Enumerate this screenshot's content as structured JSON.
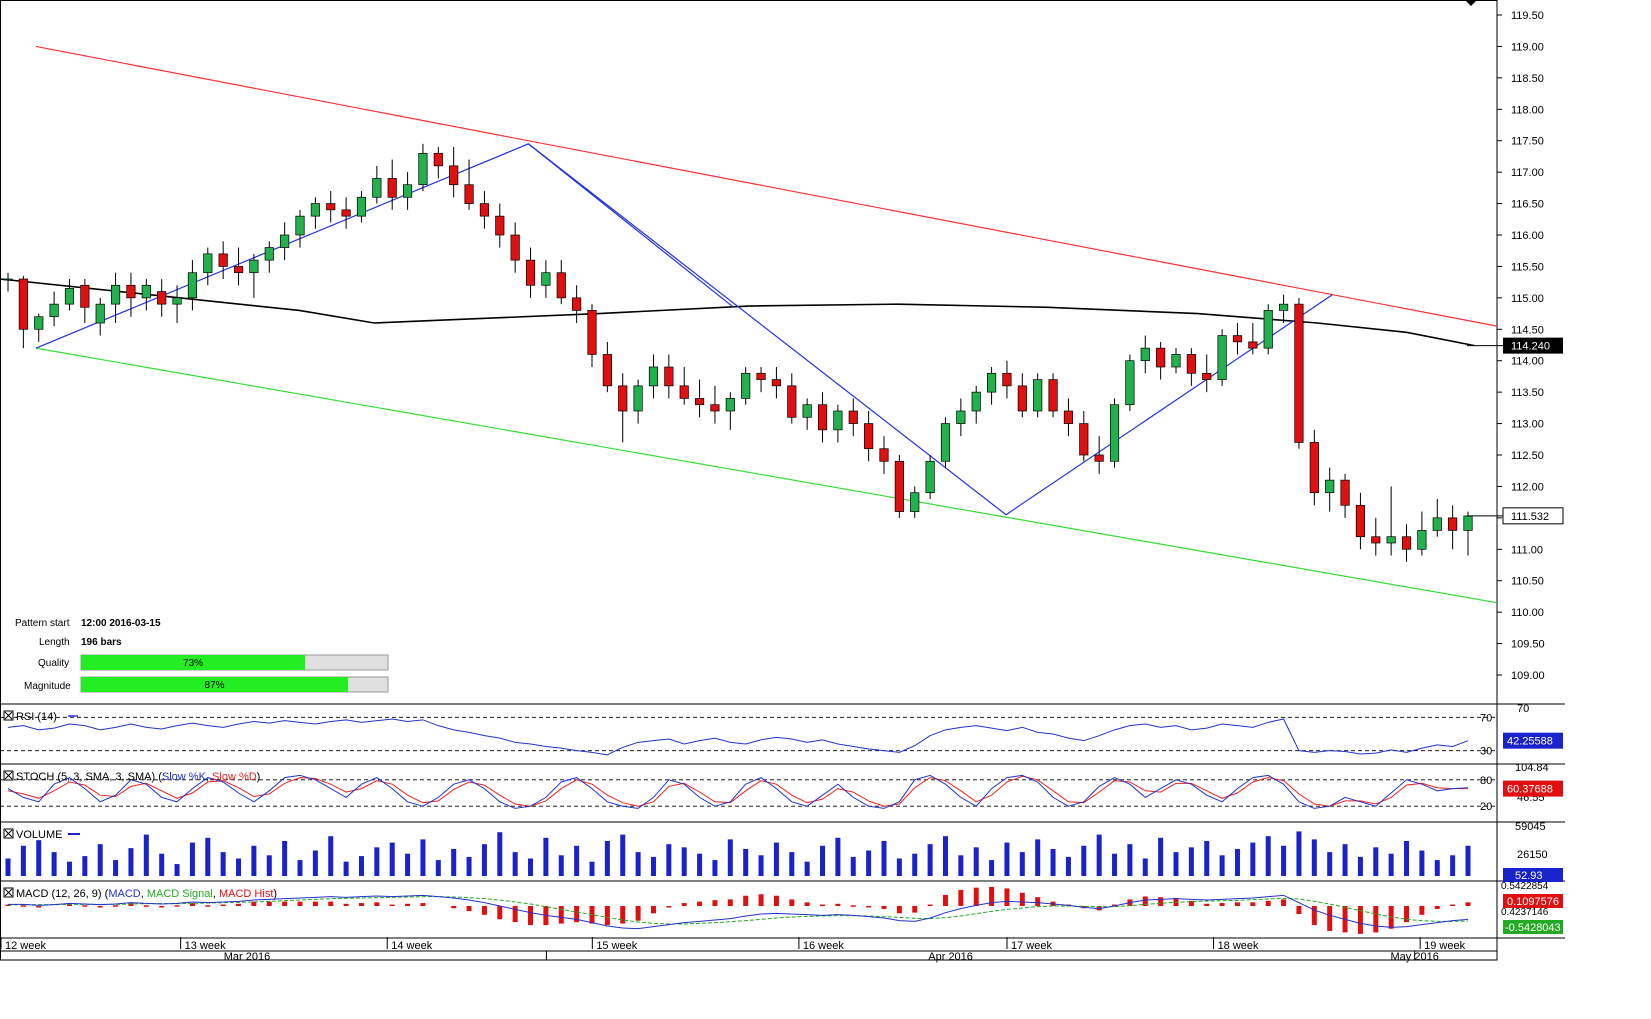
{
  "chart_data": {
    "type": "candlestick",
    "price_axis": {
      "min": 109.0,
      "max": 119.5,
      "ticks": [
        "119.50",
        "119.00",
        "118.50",
        "118.00",
        "117.50",
        "117.00",
        "116.50",
        "116.00",
        "115.50",
        "115.00",
        "114.50",
        "114.00",
        "113.50",
        "113.00",
        "112.50",
        "112.00",
        "111.50",
        "111.00",
        "110.50",
        "110.00",
        "109.50",
        "109.00"
      ]
    },
    "price_markers": [
      {
        "label": "114.240",
        "value": 114.24,
        "style": "filled"
      },
      {
        "label": "111.532",
        "value": 111.532,
        "style": "outline"
      }
    ],
    "moving_average": [
      {
        "t": 0,
        "v": 115.3
      },
      {
        "t": 0.1,
        "v": 115.05
      },
      {
        "t": 0.2,
        "v": 114.8
      },
      {
        "t": 0.25,
        "v": 114.6
      },
      {
        "t": 0.3,
        "v": 114.65
      },
      {
        "t": 0.4,
        "v": 114.75
      },
      {
        "t": 0.5,
        "v": 114.87
      },
      {
        "t": 0.6,
        "v": 114.9
      },
      {
        "t": 0.7,
        "v": 114.85
      },
      {
        "t": 0.8,
        "v": 114.75
      },
      {
        "t": 0.88,
        "v": 114.6
      },
      {
        "t": 0.94,
        "v": 114.45
      },
      {
        "t": 0.985,
        "v": 114.24
      }
    ],
    "channel": {
      "upper": [
        {
          "t": 0.024,
          "v": 119.0
        },
        {
          "t": 1.0,
          "v": 114.55
        }
      ],
      "lower": [
        {
          "t": 0.024,
          "v": 114.2
        },
        {
          "t": 1.0,
          "v": 110.15
        }
      ]
    },
    "pattern_lines": [
      {
        "t": 0.024,
        "v": 114.2
      },
      {
        "t": 0.353,
        "v": 117.45
      },
      {
        "t": 0.672,
        "v": 111.55
      },
      {
        "t": 0.89,
        "v": 115.05
      }
    ],
    "extra_pattern_line": [
      {
        "t": 0.353,
        "v": 117.45
      },
      {
        "t": 0.49,
        "v": 114.85
      }
    ],
    "candles": [
      [
        115.3,
        115.4,
        115.1,
        115.3
      ],
      [
        115.3,
        115.35,
        114.2,
        114.5
      ],
      [
        114.5,
        114.75,
        114.3,
        114.7
      ],
      [
        114.7,
        115.1,
        114.55,
        114.9
      ],
      [
        114.9,
        115.3,
        114.8,
        115.15
      ],
      [
        115.2,
        115.3,
        114.6,
        114.85
      ],
      [
        114.6,
        115.0,
        114.4,
        114.9
      ],
      [
        114.9,
        115.4,
        114.6,
        115.2
      ],
      [
        115.2,
        115.4,
        114.7,
        115.0
      ],
      [
        115.0,
        115.3,
        114.8,
        115.2
      ],
      [
        115.1,
        115.3,
        114.7,
        114.9
      ],
      [
        114.9,
        115.2,
        114.6,
        115.0
      ],
      [
        115.0,
        115.6,
        114.8,
        115.4
      ],
      [
        115.4,
        115.8,
        115.2,
        115.7
      ],
      [
        115.7,
        115.9,
        115.3,
        115.5
      ],
      [
        115.5,
        115.8,
        115.2,
        115.4
      ],
      [
        115.4,
        115.7,
        115.0,
        115.6
      ],
      [
        115.6,
        115.9,
        115.4,
        115.8
      ],
      [
        115.8,
        116.2,
        115.6,
        116.0
      ],
      [
        116.0,
        116.4,
        115.8,
        116.3
      ],
      [
        116.3,
        116.6,
        116.1,
        116.5
      ],
      [
        116.5,
        116.7,
        116.2,
        116.4
      ],
      [
        116.4,
        116.6,
        116.1,
        116.3
      ],
      [
        116.3,
        116.7,
        116.2,
        116.6
      ],
      [
        116.6,
        117.1,
        116.5,
        116.9
      ],
      [
        116.9,
        117.2,
        116.4,
        116.6
      ],
      [
        116.6,
        117.0,
        116.4,
        116.8
      ],
      [
        116.8,
        117.45,
        116.7,
        117.3
      ],
      [
        117.3,
        117.4,
        116.9,
        117.1
      ],
      [
        117.1,
        117.4,
        116.6,
        116.8
      ],
      [
        116.8,
        117.2,
        116.4,
        116.5
      ],
      [
        116.5,
        116.7,
        116.1,
        116.3
      ],
      [
        116.3,
        116.5,
        115.8,
        116.0
      ],
      [
        116.0,
        116.2,
        115.4,
        115.6
      ],
      [
        115.6,
        115.8,
        115.0,
        115.2
      ],
      [
        115.2,
        115.6,
        115.0,
        115.4
      ],
      [
        115.4,
        115.6,
        114.9,
        115.0
      ],
      [
        115.0,
        115.2,
        114.6,
        114.8
      ],
      [
        114.8,
        114.9,
        113.9,
        114.1
      ],
      [
        114.1,
        114.3,
        113.5,
        113.6
      ],
      [
        113.6,
        113.8,
        112.7,
        113.2
      ],
      [
        113.2,
        113.7,
        113.0,
        113.6
      ],
      [
        113.6,
        114.1,
        113.4,
        113.9
      ],
      [
        113.9,
        114.1,
        113.4,
        113.6
      ],
      [
        113.6,
        113.9,
        113.3,
        113.4
      ],
      [
        113.4,
        113.7,
        113.1,
        113.3
      ],
      [
        113.3,
        113.6,
        113.0,
        113.2
      ],
      [
        113.2,
        113.5,
        112.9,
        113.4
      ],
      [
        113.4,
        113.9,
        113.3,
        113.8
      ],
      [
        113.8,
        113.9,
        113.5,
        113.7
      ],
      [
        113.7,
        113.9,
        113.4,
        113.6
      ],
      [
        113.6,
        113.8,
        113.0,
        113.1
      ],
      [
        113.1,
        113.4,
        112.9,
        113.3
      ],
      [
        113.3,
        113.5,
        112.7,
        112.9
      ],
      [
        112.9,
        113.3,
        112.7,
        113.2
      ],
      [
        113.2,
        113.4,
        112.8,
        113.0
      ],
      [
        113.0,
        113.2,
        112.4,
        112.6
      ],
      [
        112.6,
        112.8,
        112.2,
        112.4
      ],
      [
        112.4,
        112.5,
        111.5,
        111.6
      ],
      [
        111.6,
        112.0,
        111.5,
        111.9
      ],
      [
        111.9,
        112.5,
        111.8,
        112.4
      ],
      [
        112.4,
        113.1,
        112.3,
        113.0
      ],
      [
        113.0,
        113.4,
        112.8,
        113.2
      ],
      [
        113.2,
        113.6,
        113.0,
        113.5
      ],
      [
        113.5,
        113.9,
        113.3,
        113.8
      ],
      [
        113.8,
        114.0,
        113.4,
        113.6
      ],
      [
        113.6,
        113.8,
        113.1,
        113.2
      ],
      [
        113.2,
        113.8,
        113.1,
        113.7
      ],
      [
        113.7,
        113.8,
        113.1,
        113.2
      ],
      [
        113.2,
        113.4,
        112.8,
        113.0
      ],
      [
        113.0,
        113.2,
        112.4,
        112.5
      ],
      [
        112.5,
        112.8,
        112.2,
        112.4
      ],
      [
        112.4,
        113.4,
        112.3,
        113.3
      ],
      [
        113.3,
        114.1,
        113.2,
        114.0
      ],
      [
        114.0,
        114.4,
        113.8,
        114.2
      ],
      [
        114.2,
        114.3,
        113.7,
        113.9
      ],
      [
        113.9,
        114.2,
        113.8,
        114.1
      ],
      [
        114.1,
        114.2,
        113.6,
        113.8
      ],
      [
        113.8,
        114.1,
        113.5,
        113.7
      ],
      [
        113.7,
        114.5,
        113.6,
        114.4
      ],
      [
        114.4,
        114.6,
        114.1,
        114.3
      ],
      [
        114.3,
        114.6,
        114.1,
        114.2
      ],
      [
        114.2,
        114.9,
        114.1,
        114.8
      ],
      [
        114.8,
        115.05,
        114.6,
        114.9
      ],
      [
        114.9,
        115.0,
        112.6,
        112.7
      ],
      [
        112.7,
        112.9,
        111.7,
        111.9
      ],
      [
        111.9,
        112.3,
        111.6,
        112.1
      ],
      [
        112.1,
        112.2,
        111.5,
        111.7
      ],
      [
        111.7,
        111.9,
        111.0,
        111.2
      ],
      [
        111.2,
        111.5,
        110.9,
        111.1
      ],
      [
        111.1,
        112.0,
        110.9,
        111.2
      ],
      [
        111.2,
        111.4,
        110.8,
        111.0
      ],
      [
        111.0,
        111.6,
        110.9,
        111.3
      ],
      [
        111.3,
        111.8,
        111.2,
        111.5
      ],
      [
        111.5,
        111.7,
        111.0,
        111.3
      ],
      [
        111.3,
        111.6,
        110.9,
        111.53
      ]
    ],
    "rsi": {
      "label": "RSI (14)",
      "levels": [
        "70",
        "30"
      ],
      "value_label": "42.25588",
      "values": [
        58,
        60,
        55,
        57,
        62,
        60,
        55,
        58,
        62,
        58,
        56,
        60,
        63,
        60,
        58,
        62,
        65,
        63,
        66,
        64,
        62,
        65,
        67,
        64,
        66,
        68,
        65,
        67,
        60,
        55,
        52,
        48,
        45,
        40,
        38,
        35,
        33,
        30,
        28,
        25,
        34,
        40,
        42,
        44,
        38,
        42,
        45,
        40,
        38,
        43,
        46,
        44,
        40,
        43,
        38,
        35,
        32,
        30,
        28,
        36,
        48,
        55,
        58,
        60,
        57,
        54,
        58,
        52,
        50,
        45,
        42,
        48,
        55,
        60,
        62,
        58,
        60,
        55,
        57,
        62,
        60,
        58,
        64,
        68,
        30,
        28,
        30,
        29,
        26,
        27,
        31,
        28,
        33,
        37,
        35,
        42
      ]
    },
    "stoch": {
      "label": "STOCH (5, 3, SMA, 3, SMA)",
      "k_label": "Slow %K",
      "d_label": "Slow %D",
      "levels": [
        "80",
        "20"
      ],
      "axis_label": "104.84",
      "axis_label_2": "46.55",
      "value_label": "60.37688",
      "k": [
        60,
        40,
        30,
        70,
        85,
        60,
        30,
        45,
        80,
        70,
        40,
        30,
        60,
        85,
        75,
        50,
        30,
        55,
        85,
        90,
        80,
        60,
        40,
        70,
        85,
        60,
        30,
        20,
        40,
        70,
        80,
        60,
        30,
        15,
        20,
        40,
        75,
        85,
        60,
        30,
        20,
        15,
        40,
        80,
        70,
        40,
        20,
        30,
        70,
        85,
        60,
        30,
        20,
        45,
        70,
        40,
        20,
        15,
        30,
        80,
        90,
        70,
        40,
        20,
        60,
        85,
        90,
        75,
        40,
        20,
        30,
        65,
        85,
        70,
        40,
        60,
        80,
        70,
        45,
        30,
        60,
        85,
        90,
        70,
        30,
        15,
        20,
        40,
        30,
        20,
        50,
        80,
        70,
        55,
        60,
        62
      ],
      "d": [
        55,
        48,
        38,
        55,
        75,
        68,
        45,
        42,
        65,
        72,
        55,
        38,
        50,
        75,
        78,
        62,
        42,
        48,
        72,
        85,
        83,
        70,
        52,
        60,
        78,
        70,
        45,
        28,
        32,
        58,
        75,
        68,
        45,
        25,
        20,
        32,
        60,
        80,
        70,
        45,
        28,
        20,
        30,
        65,
        72,
        52,
        30,
        28,
        55,
        78,
        70,
        45,
        28,
        36,
        60,
        52,
        32,
        20,
        25,
        62,
        85,
        78,
        55,
        30,
        45,
        75,
        88,
        80,
        55,
        30,
        28,
        52,
        78,
        75,
        55,
        52,
        72,
        72,
        55,
        38,
        50,
        75,
        85,
        78,
        48,
        25,
        20,
        32,
        32,
        25,
        40,
        68,
        72,
        62,
        60,
        60
      ]
    },
    "volume": {
      "label": "VOLUME",
      "axis_max_label": "59045",
      "axis_mid_label": "26150",
      "value_label": "52.93",
      "max": 59045,
      "values": [
        22000,
        38000,
        45000,
        30000,
        18000,
        25000,
        40000,
        20000,
        35000,
        52000,
        28000,
        15000,
        42000,
        48000,
        30000,
        22000,
        38000,
        26000,
        44000,
        20000,
        32000,
        50000,
        18000,
        25000,
        36000,
        42000,
        28000,
        46000,
        20000,
        34000,
        24000,
        40000,
        55000,
        30000,
        22000,
        48000,
        26000,
        38000,
        18000,
        44000,
        52000,
        30000,
        24000,
        40000,
        36000,
        28000,
        20000,
        46000,
        34000,
        26000,
        42000,
        30000,
        18000,
        38000,
        48000,
        24000,
        32000,
        44000,
        22000,
        28000,
        40000,
        50000,
        26000,
        36000,
        20000,
        42000,
        30000,
        46000,
        34000,
        24000,
        38000,
        52000,
        28000,
        40000,
        22000,
        48000,
        30000,
        36000,
        44000,
        26000,
        34000,
        42000,
        50000,
        38000,
        56000,
        46000,
        30000,
        40000,
        24000,
        36000,
        28000,
        44000,
        32000,
        20000,
        26000,
        38000
      ]
    },
    "macd": {
      "label": "MACD (12, 26, 9)",
      "macd_label": "MACD",
      "signal_label": "MACD Signal",
      "hist_label": "MACD Hist",
      "axis_top_label": "0.5422854",
      "axis_mid_label": "0.4237146",
      "value_macd_label": "0.1097576",
      "value_signal_label": "-0.5428043",
      "macd": [
        0.05,
        0.05,
        0.02,
        0.04,
        0.08,
        0.06,
        0.04,
        0.06,
        0.1,
        0.08,
        0.06,
        0.08,
        0.12,
        0.1,
        0.12,
        0.14,
        0.18,
        0.2,
        0.22,
        0.24,
        0.26,
        0.28,
        0.26,
        0.28,
        0.3,
        0.28,
        0.3,
        0.32,
        0.28,
        0.24,
        0.18,
        0.1,
        0.0,
        -0.1,
        -0.2,
        -0.28,
        -0.34,
        -0.4,
        -0.5,
        -0.6,
        -0.66,
        -0.68,
        -0.62,
        -0.56,
        -0.5,
        -0.46,
        -0.42,
        -0.38,
        -0.3,
        -0.24,
        -0.22,
        -0.24,
        -0.26,
        -0.28,
        -0.26,
        -0.28,
        -0.32,
        -0.36,
        -0.44,
        -0.46,
        -0.36,
        -0.2,
        -0.08,
        0.02,
        0.1,
        0.14,
        0.12,
        0.1,
        0.06,
        0.02,
        -0.04,
        -0.08,
        0.0,
        0.1,
        0.18,
        0.2,
        0.22,
        0.2,
        0.18,
        0.2,
        0.22,
        0.24,
        0.28,
        0.32,
        0.1,
        -0.12,
        -0.28,
        -0.4,
        -0.52,
        -0.6,
        -0.64,
        -0.62,
        -0.56,
        -0.5,
        -0.44,
        -0.4
      ],
      "signal": [
        0.03,
        0.04,
        0.04,
        0.04,
        0.05,
        0.05,
        0.05,
        0.05,
        0.06,
        0.07,
        0.07,
        0.07,
        0.08,
        0.09,
        0.1,
        0.11,
        0.12,
        0.14,
        0.16,
        0.18,
        0.2,
        0.22,
        0.23,
        0.24,
        0.25,
        0.26,
        0.27,
        0.28,
        0.28,
        0.27,
        0.25,
        0.22,
        0.18,
        0.12,
        0.06,
        -0.02,
        -0.1,
        -0.18,
        -0.26,
        -0.34,
        -0.42,
        -0.48,
        -0.52,
        -0.54,
        -0.54,
        -0.52,
        -0.5,
        -0.47,
        -0.44,
        -0.4,
        -0.36,
        -0.33,
        -0.31,
        -0.3,
        -0.29,
        -0.29,
        -0.3,
        -0.32,
        -0.34,
        -0.37,
        -0.38,
        -0.35,
        -0.3,
        -0.23,
        -0.16,
        -0.1,
        -0.06,
        -0.02,
        0.0,
        0.0,
        -0.01,
        -0.02,
        -0.02,
        0.01,
        0.05,
        0.08,
        0.11,
        0.13,
        0.15,
        0.16,
        0.17,
        0.19,
        0.21,
        0.23,
        0.21,
        0.14,
        0.06,
        -0.04,
        -0.14,
        -0.24,
        -0.33,
        -0.4,
        -0.44,
        -0.46,
        -0.46,
        -0.45
      ]
    },
    "x_axis": {
      "week_labels": [
        {
          "label": "12 week",
          "t": 0.0
        },
        {
          "label": "13 week",
          "t": 0.12
        },
        {
          "label": "14 week",
          "t": 0.258
        },
        {
          "label": "15 week",
          "t": 0.395
        },
        {
          "label": "16 week",
          "t": 0.533
        },
        {
          "label": "17 week",
          "t": 0.672
        },
        {
          "label": "18 week",
          "t": 0.81
        },
        {
          "label": "19 week",
          "t": 0.948
        }
      ],
      "month_labels": [
        {
          "label": "Mar 2016",
          "t": 0.165
        },
        {
          "label": "Apr 2016",
          "t": 0.635
        },
        {
          "label": "May 2016",
          "t": 0.945
        }
      ]
    },
    "pattern_info": {
      "start_label": "Pattern start",
      "start_value": "12:00 2016-03-15",
      "length_label": "Length",
      "length_value": "196 bars",
      "quality_label": "Quality",
      "quality_value": "73%",
      "quality_fraction": 0.73,
      "magnitude_label": "Magnitude",
      "magnitude_value": "87%",
      "magnitude_fraction": 0.87
    },
    "colors": {
      "bull": "#22b14c",
      "bear": "#e01010",
      "ma": "#000000",
      "upper_channel": "#ff3030",
      "lower_channel": "#33dd33",
      "pattern": "#2233dd",
      "rsi": "#2233cc",
      "stoch_k": "#2233cc",
      "stoch_d": "#ee2222",
      "volume": "#1a22cc",
      "macd": "#2233cc",
      "signal": "#22aa22",
      "hist": "#e01010",
      "progress": "#22ee22"
    }
  }
}
